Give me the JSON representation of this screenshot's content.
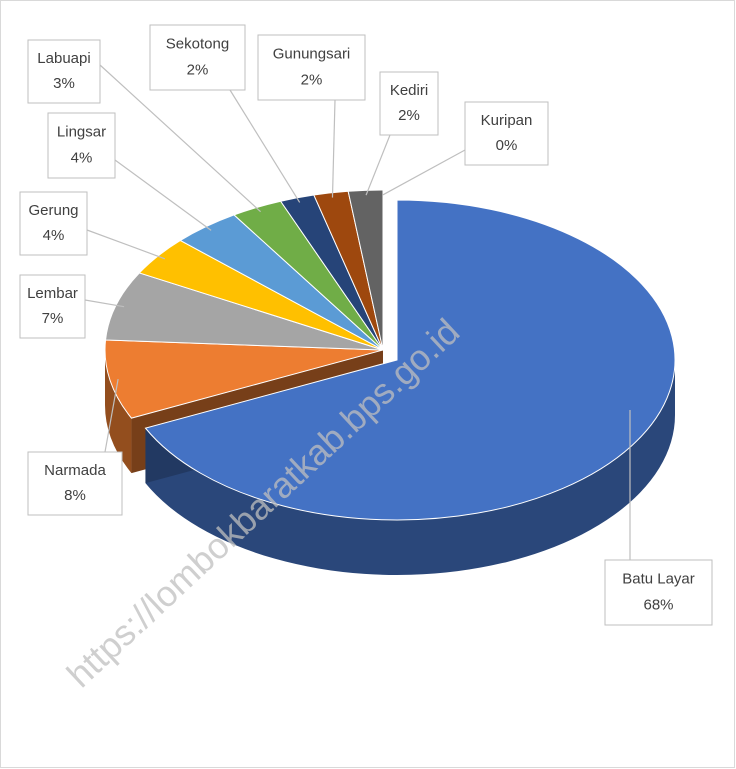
{
  "chart_data": {
    "type": "pie",
    "categories": [
      "Batu Layar",
      "Narmada",
      "Lembar",
      "Gerung",
      "Lingsar",
      "Labuapi",
      "Sekotong",
      "Gunungsari",
      "Kediri",
      "Kuripan"
    ],
    "values": [
      68,
      8,
      7,
      4,
      4,
      3,
      2,
      2,
      2,
      0
    ],
    "value_labels": [
      "68%",
      "8%",
      "7%",
      "4%",
      "4%",
      "3%",
      "2%",
      "2%",
      "2%",
      "0%"
    ],
    "colors": [
      "#4472c4",
      "#ed7d31",
      "#a5a5a5",
      "#ffc000",
      "#5b9bd5",
      "#70ad47",
      "#264478",
      "#9e480e",
      "#636363",
      "#997300"
    ],
    "explode": [
      true,
      false,
      false,
      false,
      false,
      false,
      false,
      false,
      false,
      false
    ],
    "watermark": "https://lombokbaratkab.bps.go.id"
  }
}
